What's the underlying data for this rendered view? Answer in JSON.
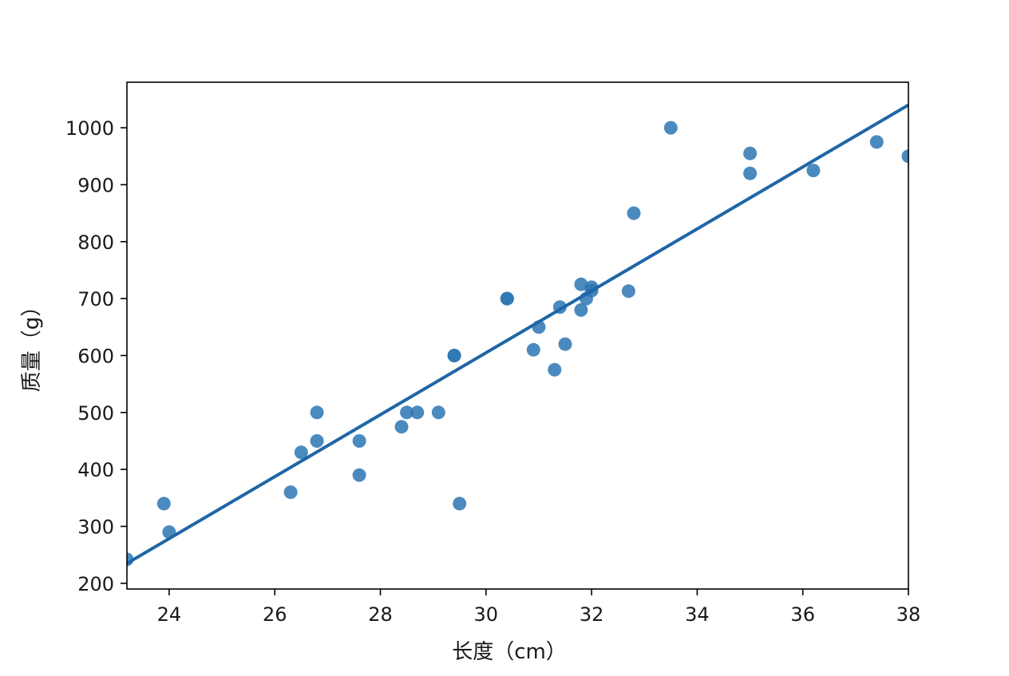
{
  "chart_data": {
    "type": "scatter",
    "xlabel": "长度（cm）",
    "ylabel": "质量（g）",
    "xlim": [
      23.2,
      38
    ],
    "ylim": [
      190,
      1080
    ],
    "xticks": [
      24,
      26,
      28,
      30,
      32,
      34,
      36,
      38
    ],
    "yticks": [
      200,
      300,
      400,
      500,
      600,
      700,
      800,
      900,
      1000
    ],
    "grid": false,
    "point_color": "#2c75b3",
    "line_color": "#1f66a6",
    "points": [
      {
        "x": 23.2,
        "y": 242
      },
      {
        "x": 23.9,
        "y": 340
      },
      {
        "x": 24.0,
        "y": 290
      },
      {
        "x": 26.3,
        "y": 360
      },
      {
        "x": 26.5,
        "y": 430
      },
      {
        "x": 26.8,
        "y": 450
      },
      {
        "x": 26.8,
        "y": 500
      },
      {
        "x": 27.6,
        "y": 450
      },
      {
        "x": 27.6,
        "y": 390
      },
      {
        "x": 28.4,
        "y": 475
      },
      {
        "x": 28.5,
        "y": 500
      },
      {
        "x": 28.7,
        "y": 500
      },
      {
        "x": 29.1,
        "y": 500
      },
      {
        "x": 29.4,
        "y": 600
      },
      {
        "x": 29.4,
        "y": 600
      },
      {
        "x": 29.5,
        "y": 340
      },
      {
        "x": 30.4,
        "y": 700
      },
      {
        "x": 30.4,
        "y": 700
      },
      {
        "x": 30.9,
        "y": 610
      },
      {
        "x": 31.0,
        "y": 650
      },
      {
        "x": 31.3,
        "y": 575
      },
      {
        "x": 31.4,
        "y": 685
      },
      {
        "x": 31.5,
        "y": 620
      },
      {
        "x": 31.8,
        "y": 680
      },
      {
        "x": 31.8,
        "y": 725
      },
      {
        "x": 31.9,
        "y": 700
      },
      {
        "x": 32.0,
        "y": 720
      },
      {
        "x": 32.0,
        "y": 714
      },
      {
        "x": 32.7,
        "y": 713
      },
      {
        "x": 32.8,
        "y": 850
      },
      {
        "x": 33.5,
        "y": 1000
      },
      {
        "x": 35.0,
        "y": 920
      },
      {
        "x": 35.0,
        "y": 955
      },
      {
        "x": 36.2,
        "y": 925
      },
      {
        "x": 37.4,
        "y": 975
      },
      {
        "x": 38.0,
        "y": 950
      }
    ],
    "fit_line": {
      "x": [
        23.2,
        38.0
      ],
      "y": [
        235,
        1040
      ]
    }
  }
}
